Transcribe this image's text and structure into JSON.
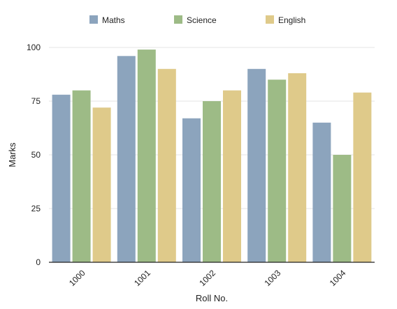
{
  "chart_data": {
    "type": "bar",
    "title": "",
    "xlabel": "Roll No.",
    "ylabel": "Marks",
    "categories": [
      "1000",
      "1001",
      "1002",
      "1003",
      "1004"
    ],
    "series": [
      {
        "name": "Maths",
        "color": "#8ca4bd",
        "values": [
          78,
          96,
          67,
          90,
          65
        ]
      },
      {
        "name": "Science",
        "color": "#9dbb86",
        "values": [
          80,
          99,
          75,
          85,
          50
        ]
      },
      {
        "name": "English",
        "color": "#dfca8a",
        "values": [
          72,
          90,
          80,
          88,
          79
        ]
      }
    ],
    "ylim": [
      0,
      100
    ],
    "yticks": [
      0,
      25,
      50,
      75,
      100
    ],
    "grid": true,
    "legend": "top-center"
  }
}
